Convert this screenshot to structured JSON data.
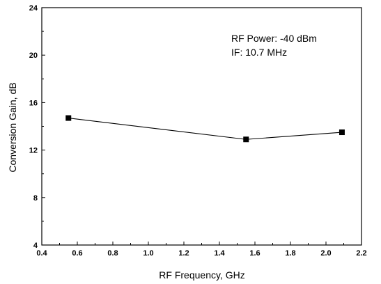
{
  "chart_data": {
    "type": "line",
    "xlabel": "RF Frequency, GHz",
    "ylabel": "Conversion Gain, dB",
    "xlim": [
      0.4,
      2.2
    ],
    "ylim": [
      4,
      24
    ],
    "x_ticks": [
      "0.4",
      "0.6",
      "0.8",
      "1.0",
      "1.2",
      "1.4",
      "1.6",
      "1.8",
      "2.0",
      "2.2"
    ],
    "y_ticks": [
      "4",
      "8",
      "12",
      "16",
      "20",
      "24"
    ],
    "grid": false,
    "legend": "none",
    "annotations": [
      "RF Power: -40 dBm",
      "IF: 10.7 MHz"
    ],
    "series": [
      {
        "marker": "square",
        "color": "#000000",
        "x": [
          0.55,
          1.55,
          2.09
        ],
        "y": [
          14.7,
          12.9,
          13.5
        ]
      }
    ]
  }
}
